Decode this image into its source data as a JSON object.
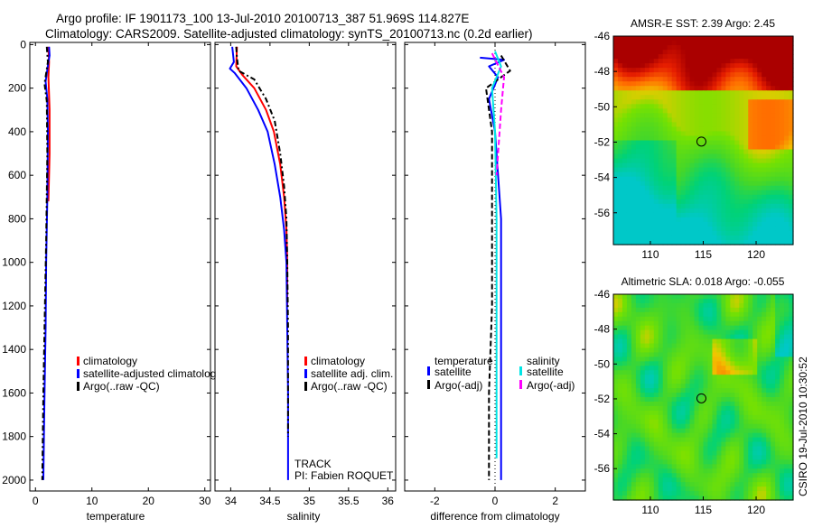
{
  "figure": {
    "title_line1": "Argo profile: IF 1901173_100 13-Jul-2010 20100713_387 51.969S 114.827E",
    "title_line2": "Climatology: CARS2009. Satellite-adjusted climatology: synTS_20100713.nc (0.2d earlier)",
    "track_label": "TRACK",
    "pi_label": "PI: Fabien ROQUET",
    "timestamp": "CSIRO 19-Jul-2010 10:30:52"
  },
  "colors": {
    "climatology": "#ff0000",
    "satellite": "#0000ff",
    "argo": "#000000",
    "sat_sal": "#00e5e5",
    "argo_sal": "#ff00ff"
  },
  "chart_data": [
    {
      "type": "line",
      "name": "temperature",
      "xlabel": "temperature",
      "xlim": [
        -1,
        31
      ],
      "ylim": [
        2050,
        -10
      ],
      "xticks": [
        0,
        10,
        20,
        30
      ],
      "xtick_labels": [
        "0",
        "10",
        "20",
        "30"
      ],
      "yticks": [
        0,
        200,
        400,
        600,
        800,
        1000,
        1200,
        1400,
        1600,
        1800,
        2000
      ],
      "ytick_labels": [
        "0",
        "200",
        "400",
        "600",
        "800",
        "1000",
        "1200",
        "1400",
        "1600",
        "1800",
        "2000"
      ],
      "legend": [
        "climatology",
        "satellite-adjusted climatolog",
        "Argo(..raw -QC)"
      ],
      "series": [
        {
          "name": "climatology",
          "color": "#ff0000",
          "dash": "",
          "width": 2,
          "points": [
            [
              2.3,
              10
            ],
            [
              2.4,
              80
            ],
            [
              2.3,
              150
            ],
            [
              2.5,
              300
            ],
            [
              2.5,
              500
            ],
            [
              2.3,
              720
            ]
          ]
        },
        {
          "name": "satellite-adjusted climatology",
          "color": "#0000ff",
          "dash": "",
          "width": 2,
          "points": [
            [
              2.4,
              10
            ],
            [
              2.5,
              50
            ],
            [
              2.3,
              80
            ],
            [
              1.8,
              170
            ],
            [
              2.1,
              250
            ],
            [
              2.2,
              400
            ],
            [
              2.1,
              700
            ],
            [
              1.9,
              1000
            ],
            [
              1.8,
              1300
            ],
            [
              1.6,
              1600
            ],
            [
              1.5,
              1800
            ],
            [
              1.4,
              2000
            ]
          ]
        },
        {
          "name": "Argo(..raw -QC)",
          "color": "#000000",
          "dash": "6,3,2,3",
          "width": 2,
          "points": [
            [
              2.0,
              10
            ],
            [
              2.2,
              80
            ],
            [
              1.6,
              180
            ],
            [
              2.0,
              260
            ],
            [
              2.1,
              500
            ],
            [
              1.9,
              900
            ],
            [
              1.6,
              1300
            ],
            [
              1.4,
              1600
            ],
            [
              1.3,
              1800
            ],
            [
              1.2,
              2000
            ]
          ]
        }
      ]
    },
    {
      "type": "line",
      "name": "salinity",
      "xlabel": "salinity",
      "xlim": [
        33.8,
        36.1
      ],
      "ylim": [
        2050,
        -10
      ],
      "xticks": [
        34,
        34.5,
        35,
        35.5,
        36
      ],
      "xtick_labels": [
        "34",
        "34.5",
        "35",
        "35.5",
        "36"
      ],
      "legend": [
        "climatology",
        "satellite adj. clim.",
        "Argo(..raw -QC)"
      ],
      "series": [
        {
          "name": "climatology",
          "color": "#ff0000",
          "dash": "",
          "width": 2,
          "points": [
            [
              34.08,
              10
            ],
            [
              34.07,
              100
            ],
            [
              34.15,
              140
            ],
            [
              34.3,
              200
            ],
            [
              34.45,
              300
            ],
            [
              34.55,
              400
            ],
            [
              34.63,
              550
            ],
            [
              34.68,
              700
            ],
            [
              34.71,
              850
            ],
            [
              34.72,
              1000
            ],
            [
              34.72,
              1200
            ]
          ]
        },
        {
          "name": "satellite adj. clim.",
          "color": "#0000ff",
          "dash": "",
          "width": 2,
          "points": [
            [
              34.02,
              10
            ],
            [
              34.04,
              80
            ],
            [
              33.99,
              110
            ],
            [
              34.05,
              130
            ],
            [
              34.2,
              200
            ],
            [
              34.35,
              300
            ],
            [
              34.47,
              400
            ],
            [
              34.56,
              550
            ],
            [
              34.63,
              700
            ],
            [
              34.68,
              850
            ],
            [
              34.71,
              1000
            ],
            [
              34.72,
              1300
            ],
            [
              34.73,
              1600
            ],
            [
              34.73,
              2000
            ]
          ]
        },
        {
          "name": "Argo(..raw -QC)",
          "color": "#000000",
          "dash": "6,3,2,3",
          "width": 2,
          "points": [
            [
              34.07,
              10
            ],
            [
              34.08,
              60
            ],
            [
              34.1,
              120
            ],
            [
              34.3,
              160
            ],
            [
              34.45,
              250
            ],
            [
              34.56,
              350
            ],
            [
              34.63,
              500
            ],
            [
              34.68,
              650
            ],
            [
              34.71,
              800
            ],
            [
              34.72,
              1000
            ],
            [
              34.73,
              1300
            ],
            [
              34.73,
              1800
            ]
          ]
        }
      ]
    },
    {
      "type": "line",
      "name": "difference",
      "xlabel": "difference from climatology",
      "xlim": [
        -3,
        3
      ],
      "ylim": [
        2050,
        -10
      ],
      "xticks": [
        -2,
        0,
        2
      ],
      "xtick_labels": [
        "-2",
        "0",
        "2"
      ],
      "legend_title_left": "temperature",
      "legend_title_right": "salinity",
      "legend": [
        "satellite",
        "Argo(-adj)",
        "satellite",
        "Argo(-adj)"
      ],
      "series": [
        {
          "name": "temperature satellite",
          "color": "#0000ff",
          "dash": "",
          "width": 2,
          "points": [
            [
              -0.5,
              60
            ],
            [
              0.3,
              70
            ],
            [
              -0.2,
              100
            ],
            [
              0.1,
              150
            ],
            [
              -0.2,
              250
            ],
            [
              0.0,
              400
            ],
            [
              0.2,
              800
            ],
            [
              0.2,
              1200
            ],
            [
              0.2,
              1600
            ],
            [
              0.2,
              2000
            ]
          ]
        },
        {
          "name": "temperature Argo(-adj)",
          "color": "#000000",
          "dash": "6,3",
          "width": 2,
          "points": [
            [
              0.2,
              50
            ],
            [
              0.5,
              120
            ],
            [
              -0.3,
              200
            ],
            [
              -0.1,
              400
            ],
            [
              -0.1,
              800
            ],
            [
              -0.1,
              1200
            ],
            [
              -0.2,
              1600
            ],
            [
              -0.2,
              2000
            ]
          ]
        },
        {
          "name": "salinity satellite",
          "color": "#00e5e5",
          "dash": "",
          "width": 2,
          "points": [
            [
              0.0,
              30
            ],
            [
              0.2,
              100
            ],
            [
              -0.1,
              200
            ],
            [
              0.0,
              400
            ],
            [
              0.05,
              800
            ],
            [
              0.05,
              1200
            ],
            [
              0.05,
              1600
            ],
            [
              0.05,
              1900
            ]
          ]
        },
        {
          "name": "salinity Argo(-adj)",
          "color": "#ff00ff",
          "dash": "6,3",
          "width": 2,
          "points": [
            [
              -0.1,
              40
            ],
            [
              0.3,
              150
            ],
            [
              0.2,
              300
            ],
            [
              0.05,
              600
            ]
          ]
        }
      ]
    },
    {
      "type": "heatmap",
      "name": "sst-map",
      "title": "AMSR-E SST: 2.39 Argo: 2.45",
      "xlim": [
        106.5,
        123.5
      ],
      "ylim": [
        -57.8,
        -46
      ],
      "xticks": [
        110,
        115,
        120
      ],
      "xtick_labels": [
        "110",
        "115",
        "120"
      ],
      "yticks": [
        -46,
        -48,
        -50,
        -52,
        -54,
        -56
      ],
      "ytick_labels": [
        "-46",
        "-48",
        "-50",
        "-52",
        "-54",
        "-56"
      ],
      "marker": [
        114.827,
        -51.969
      ]
    },
    {
      "type": "heatmap",
      "name": "sla-map",
      "title": "Altimetric SLA: 0.018 Argo: -0.055",
      "xlim": [
        106.5,
        123.5
      ],
      "ylim": [
        -57.8,
        -46
      ],
      "xticks": [
        110,
        115,
        120
      ],
      "xtick_labels": [
        "110",
        "115",
        "120"
      ],
      "yticks": [
        -46,
        -48,
        -50,
        -52,
        -54,
        -56
      ],
      "ytick_labels": [
        "-46",
        "-48",
        "-50",
        "-52",
        "-54",
        "-56"
      ],
      "marker": [
        114.827,
        -51.969
      ]
    }
  ]
}
